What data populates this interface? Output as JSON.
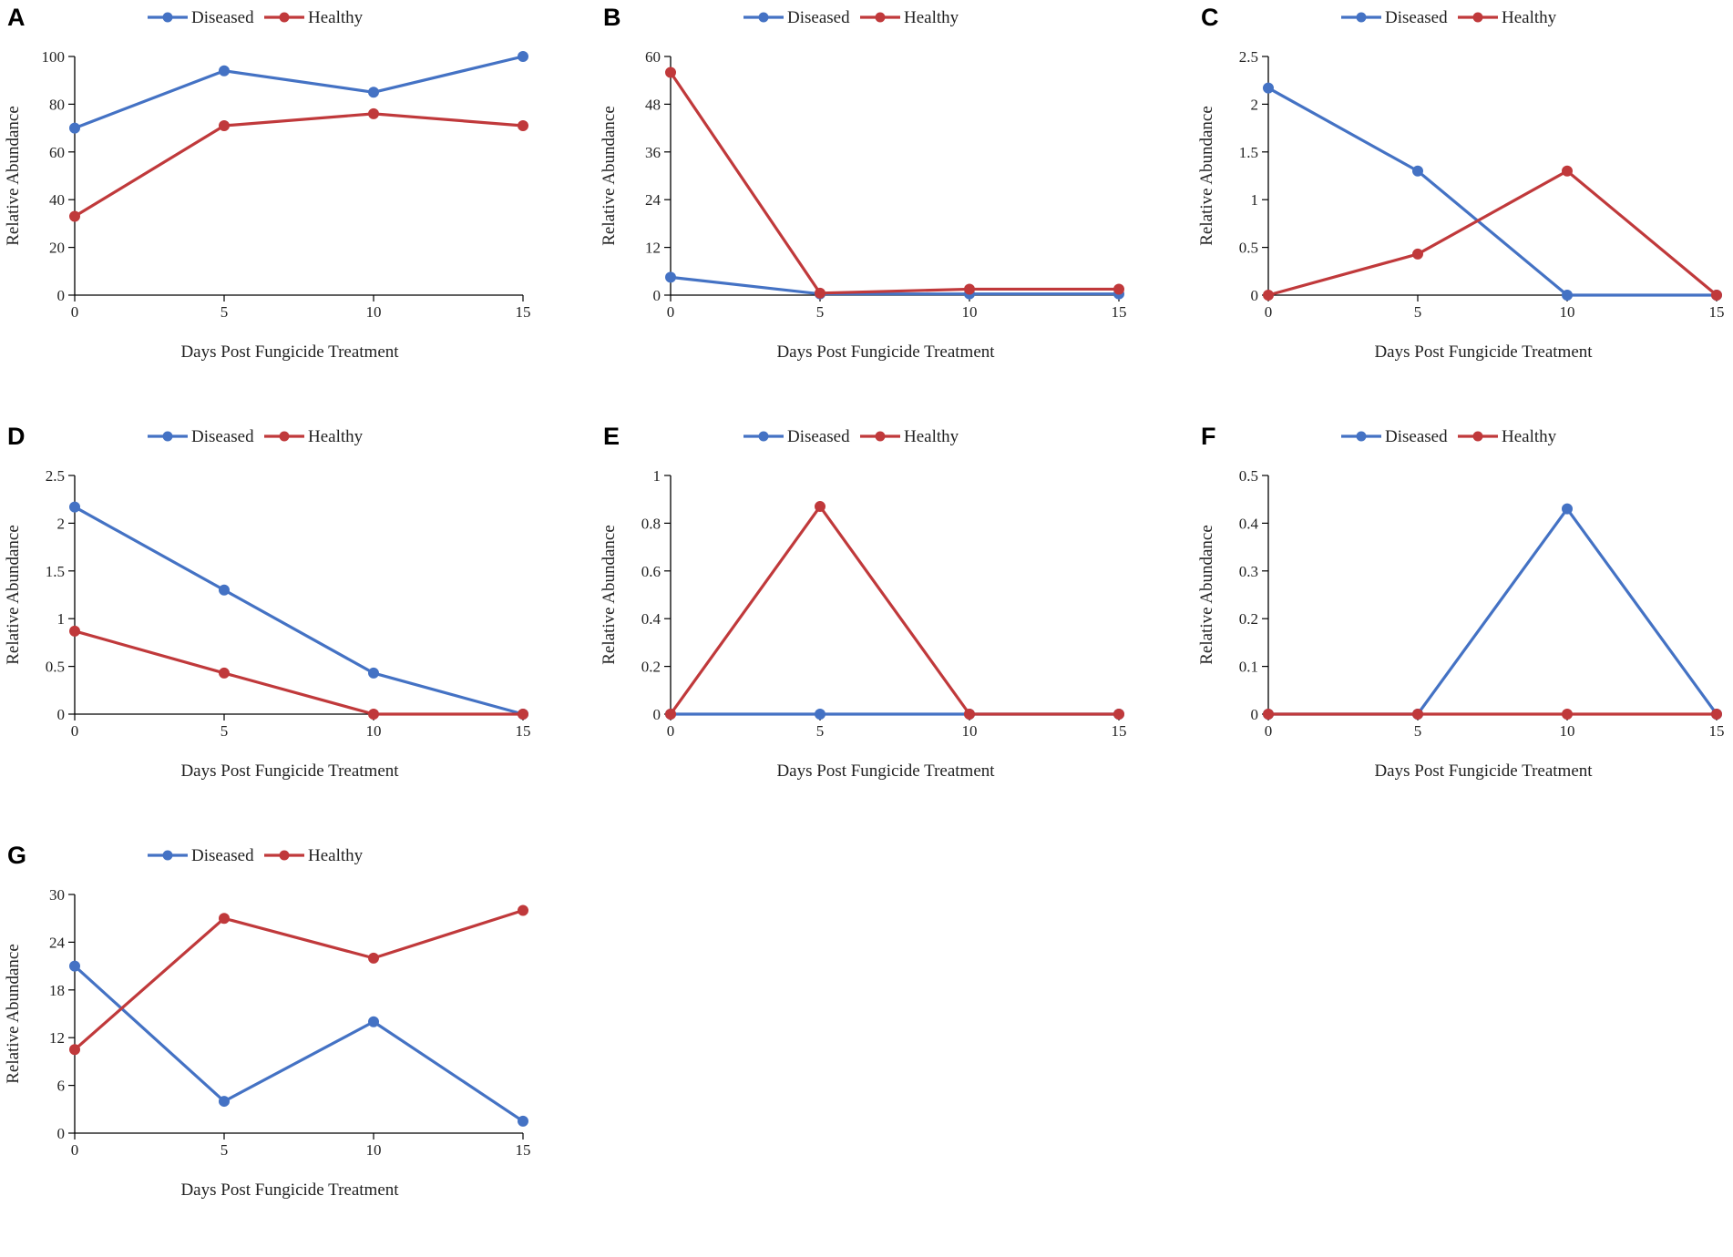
{
  "colors": {
    "diseased": "#4472C4",
    "healthy": "#C0393B",
    "axis": "#000000"
  },
  "chart_data": [
    {
      "type": "line",
      "panel_label": "A",
      "x": [
        0,
        5,
        10,
        15
      ],
      "xticks": [
        "0",
        "5",
        "10",
        "15"
      ],
      "yticks": [
        "0",
        "20",
        "40",
        "60",
        "80",
        "100"
      ],
      "ylim": [
        0,
        100
      ],
      "xlabel": "Days Post Fungicide Treatment",
      "ylabel": "Relative Abundance",
      "series": [
        {
          "name": "Diseased",
          "values": [
            70,
            94,
            85,
            100
          ]
        },
        {
          "name": "Healthy",
          "values": [
            33,
            71,
            76,
            71
          ]
        }
      ]
    },
    {
      "type": "line",
      "panel_label": "B",
      "x": [
        0,
        5,
        10,
        15
      ],
      "xticks": [
        "0",
        "5",
        "10",
        "15"
      ],
      "yticks": [
        "0",
        "12",
        "24",
        "36",
        "48",
        "60"
      ],
      "ylim": [
        0,
        60
      ],
      "xlabel": "Days Post Fungicide Treatment",
      "ylabel": "Relative Abundance",
      "series": [
        {
          "name": "Diseased",
          "values": [
            4.5,
            0.3,
            0.3,
            0.3
          ]
        },
        {
          "name": "Healthy",
          "values": [
            56,
            0.5,
            1.5,
            1.5
          ]
        }
      ]
    },
    {
      "type": "line",
      "panel_label": "C",
      "x": [
        0,
        5,
        10,
        15
      ],
      "xticks": [
        "0",
        "5",
        "10",
        "15"
      ],
      "yticks": [
        "0",
        "0.5",
        "1",
        "1.5",
        "2",
        "2.5"
      ],
      "ylim": [
        0,
        2.5
      ],
      "xlabel": "Days Post Fungicide Treatment",
      "ylabel": "Relative Abundance",
      "series": [
        {
          "name": "Diseased",
          "values": [
            2.17,
            1.3,
            0,
            0
          ]
        },
        {
          "name": "Healthy",
          "values": [
            0,
            0.43,
            1.3,
            0
          ]
        }
      ]
    },
    {
      "type": "line",
      "panel_label": "D",
      "x": [
        0,
        5,
        10,
        15
      ],
      "xticks": [
        "0",
        "5",
        "10",
        "15"
      ],
      "yticks": [
        "0",
        "0.5",
        "1",
        "1.5",
        "2",
        "2.5"
      ],
      "ylim": [
        0,
        2.5
      ],
      "xlabel": "Days Post Fungicide Treatment",
      "ylabel": "Relative Abundance",
      "series": [
        {
          "name": "Diseased",
          "values": [
            2.17,
            1.3,
            0.43,
            0
          ]
        },
        {
          "name": "Healthy",
          "values": [
            0.87,
            0.43,
            0,
            0
          ]
        }
      ]
    },
    {
      "type": "line",
      "panel_label": "E",
      "x": [
        0,
        5,
        10,
        15
      ],
      "xticks": [
        "0",
        "5",
        "10",
        "15"
      ],
      "yticks": [
        "0",
        "0.2",
        "0.4",
        "0.6",
        "0.8",
        "1"
      ],
      "ylim": [
        0,
        1
      ],
      "xlabel": "Days Post Fungicide Treatment",
      "ylabel": "Relative Abundance",
      "series": [
        {
          "name": "Diseased",
          "values": [
            0,
            0,
            0,
            0
          ]
        },
        {
          "name": "Healthy",
          "values": [
            0,
            0.87,
            0,
            0
          ]
        }
      ]
    },
    {
      "type": "line",
      "panel_label": "F",
      "x": [
        0,
        5,
        10,
        15
      ],
      "xticks": [
        "0",
        "5",
        "10",
        "15"
      ],
      "yticks": [
        "0",
        "0.1",
        "0.2",
        "0.3",
        "0.4",
        "0.5"
      ],
      "ylim": [
        0,
        0.5
      ],
      "xlabel": "Days Post Fungicide Treatment",
      "ylabel": "Relative Abundance",
      "series": [
        {
          "name": "Diseased",
          "values": [
            0,
            0,
            0.43,
            0
          ]
        },
        {
          "name": "Healthy",
          "values": [
            0,
            0,
            0,
            0
          ]
        }
      ]
    },
    {
      "type": "line",
      "panel_label": "G",
      "x": [
        0,
        5,
        10,
        15
      ],
      "xticks": [
        "0",
        "5",
        "10",
        "15"
      ],
      "yticks": [
        "0",
        "6",
        "12",
        "18",
        "24",
        "30"
      ],
      "ylim": [
        0,
        30
      ],
      "xlabel": "Days Post Fungicide Treatment",
      "ylabel": "Relative Abundance",
      "series": [
        {
          "name": "Diseased",
          "values": [
            21,
            4,
            14,
            1.5
          ]
        },
        {
          "name": "Healthy",
          "values": [
            10.5,
            27,
            22,
            28
          ]
        }
      ]
    }
  ]
}
